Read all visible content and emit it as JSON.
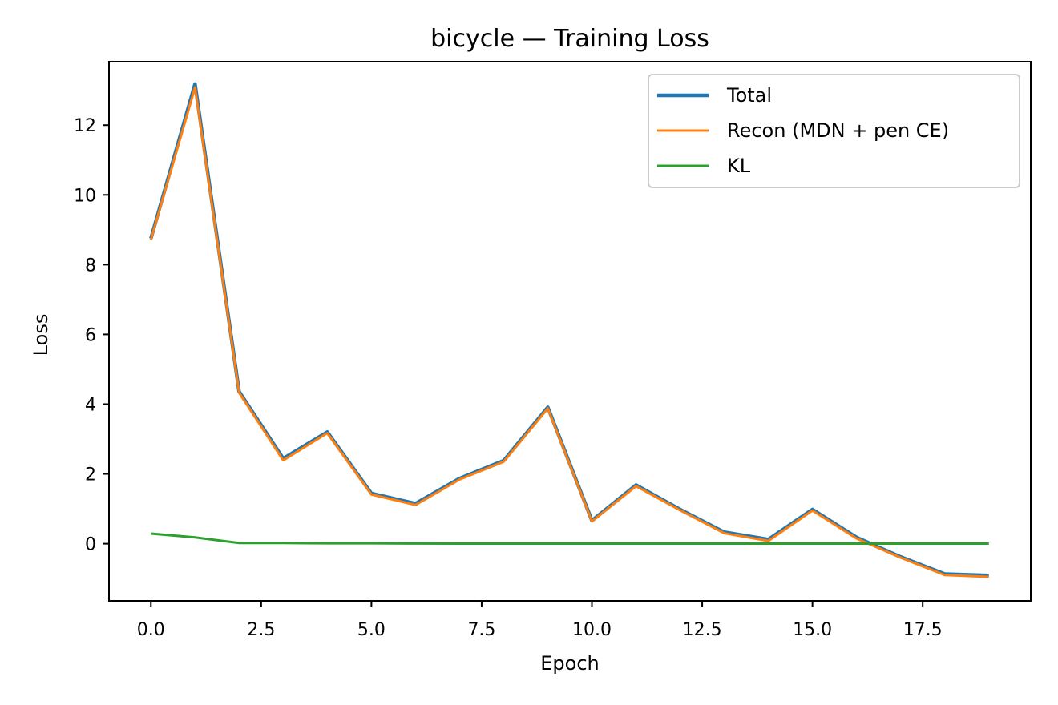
{
  "chart_data": {
    "type": "line",
    "title": "bicycle — Training Loss",
    "xlabel": "Epoch",
    "ylabel": "Loss",
    "x": [
      0,
      1,
      2,
      3,
      4,
      5,
      6,
      7,
      8,
      9,
      10,
      11,
      12,
      13,
      14,
      15,
      16,
      17,
      18,
      19
    ],
    "xlim": [
      -0.95,
      19.95
    ],
    "ylim": [
      -1.64,
      13.82
    ],
    "xticks": [
      0.0,
      2.5,
      5.0,
      7.5,
      10.0,
      12.5,
      15.0,
      17.5
    ],
    "xtick_labels": [
      "0.0",
      "2.5",
      "5.0",
      "7.5",
      "10.0",
      "12.5",
      "15.0",
      "17.5"
    ],
    "yticks": [
      0,
      2,
      4,
      6,
      8,
      10,
      12
    ],
    "ytick_labels": [
      "0",
      "2",
      "4",
      "6",
      "8",
      "10",
      "12"
    ],
    "grid": false,
    "legend_position": "top-right",
    "series": [
      {
        "name": "Total",
        "color": "#1f77b4",
        "values": [
          8.75,
          13.18,
          4.36,
          2.44,
          3.2,
          1.44,
          1.15,
          1.87,
          2.38,
          3.91,
          0.66,
          1.68,
          0.98,
          0.33,
          0.12,
          0.98,
          0.18,
          -0.38,
          -0.87,
          -0.91
        ]
      },
      {
        "name": "Recon (MDN + pen CE)",
        "color": "#ff7f0e",
        "values": [
          8.72,
          13.08,
          4.33,
          2.39,
          3.17,
          1.41,
          1.11,
          1.84,
          2.35,
          3.88,
          0.64,
          1.65,
          0.96,
          0.3,
          0.08,
          0.95,
          0.15,
          -0.4,
          -0.9,
          -0.95
        ]
      },
      {
        "name": "KL",
        "color": "#2ca02c",
        "values": [
          0.29,
          0.18,
          0.02,
          0.02,
          0.01,
          0.01,
          0.005,
          0.003,
          0.002,
          0.002,
          0.001,
          0.001,
          0.001,
          0.001,
          0.001,
          0.001,
          0.001,
          0.001,
          0.001,
          0.001
        ]
      }
    ]
  }
}
